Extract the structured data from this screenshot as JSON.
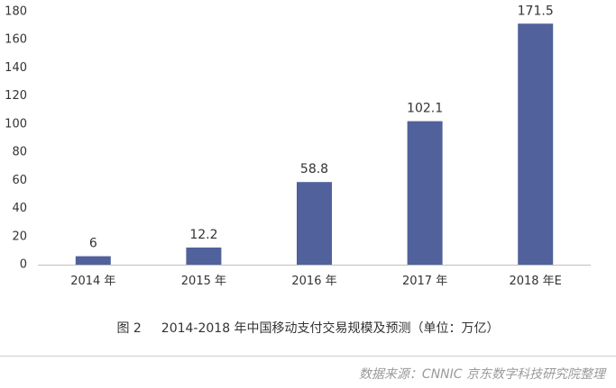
{
  "chart_data": {
    "type": "bar",
    "categories": [
      "2014 年",
      "2015 年",
      "2016 年",
      "2017 年",
      "2018 年E"
    ],
    "values": [
      6,
      12.2,
      58.8,
      102.1,
      171.5
    ],
    "data_labels": [
      "6",
      "12.2",
      "58.8",
      "102.1",
      "171.5"
    ],
    "ylim": [
      0,
      180
    ],
    "yticks": [
      0,
      20,
      40,
      60,
      80,
      100,
      120,
      140,
      160,
      180
    ],
    "grid": false,
    "legend": "none",
    "bar_color": "#51619c"
  },
  "caption": {
    "figure_no": "图 2",
    "text": "2014-2018 年中国移动支付交易规模及预测（单位：万亿）"
  },
  "source": "数据来源：CNNIC 京东数字科技研究院整理"
}
